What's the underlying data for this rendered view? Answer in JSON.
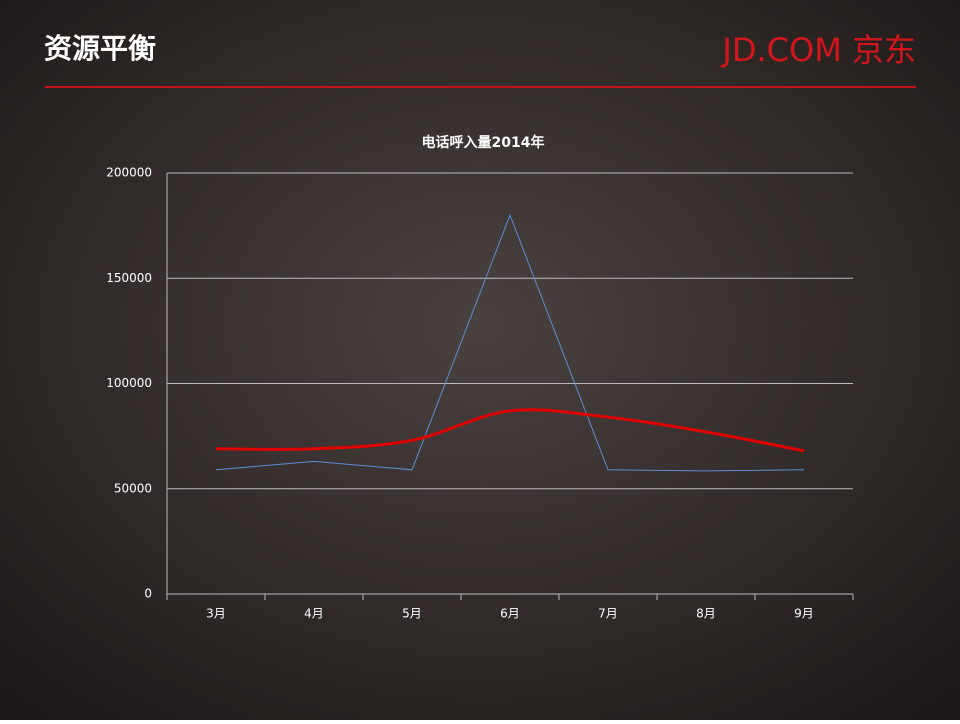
{
  "slide": {
    "title": "资源平衡",
    "logo": "JD.COM 京东"
  },
  "chart_data": {
    "type": "line",
    "title": "电话呼入量2014年",
    "categories": [
      "3月",
      "4月",
      "5月",
      "6月",
      "7月",
      "8月",
      "9月"
    ],
    "series": [
      {
        "color": "#5b8fd6",
        "width": 1,
        "smooth": false,
        "values": [
          59000,
          63000,
          59000,
          180000,
          59000,
          58500,
          59000
        ]
      },
      {
        "color": "#e00000",
        "width": 3,
        "smooth": true,
        "values": [
          69000,
          69000,
          73000,
          87000,
          84000,
          77000,
          68000
        ]
      }
    ],
    "ylim": [
      0,
      200000
    ],
    "yticks": [
      0,
      50000,
      100000,
      150000,
      200000
    ],
    "grid": true
  }
}
